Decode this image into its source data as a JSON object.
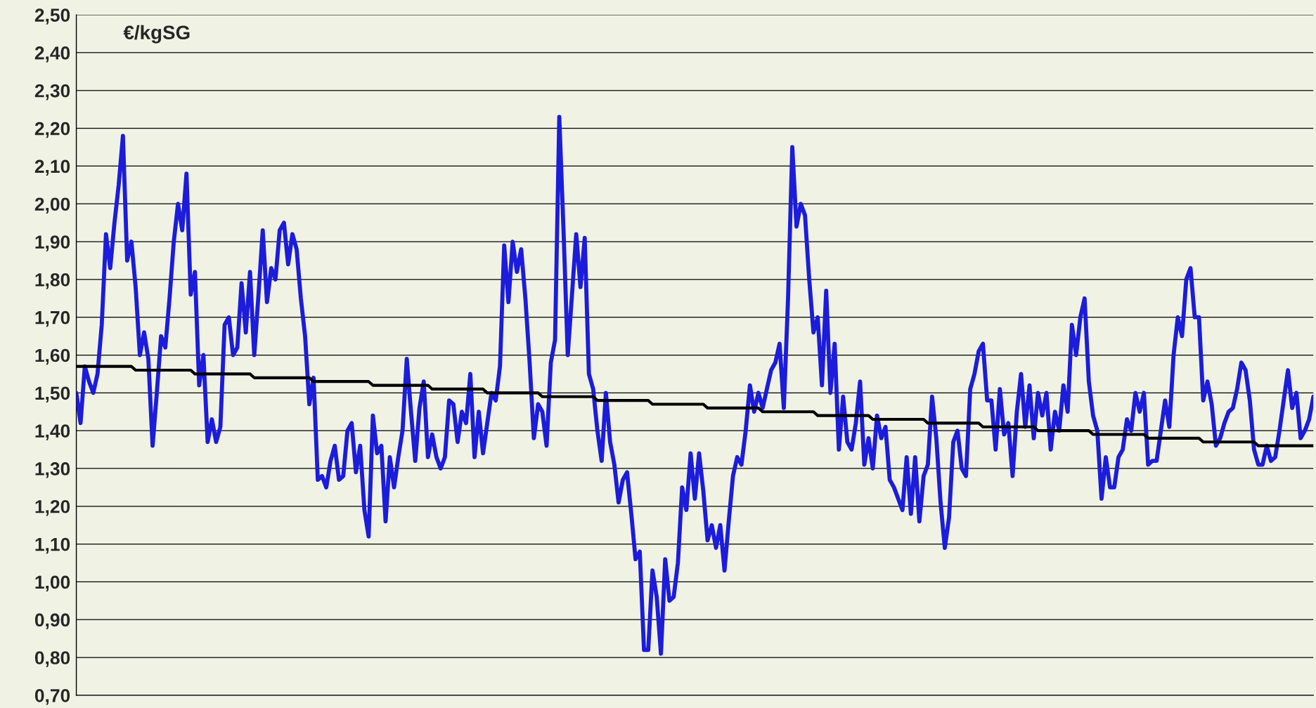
{
  "chart_data": {
    "type": "line",
    "annotations": [
      "€/kgSG"
    ],
    "categories": [
      null,
      null,
      null,
      null,
      null,
      null,
      null,
      null,
      null,
      null,
      null,
      null,
      null,
      null,
      null,
      null,
      null,
      null,
      null,
      null,
      null,
      null,
      null,
      null,
      null,
      null,
      null,
      null,
      null,
      null,
      null,
      null,
      null,
      null,
      null,
      null,
      null,
      null,
      null,
      null,
      null,
      null,
      null,
      null,
      null,
      null,
      null,
      null,
      null,
      null,
      null,
      null,
      null,
      null,
      null,
      null,
      null,
      null,
      null,
      null,
      null,
      null,
      null,
      null,
      null,
      null,
      null,
      null,
      null,
      null,
      null,
      null,
      null,
      null,
      null,
      null,
      null,
      null,
      null,
      null,
      null,
      null,
      null,
      null,
      null,
      null,
      null,
      null,
      null,
      null,
      null,
      null,
      null,
      null,
      null,
      null,
      null,
      null,
      null,
      null,
      null,
      null,
      null,
      null,
      null,
      null,
      null,
      null,
      null,
      null,
      null,
      null,
      null,
      null,
      null,
      null,
      null,
      null,
      null,
      null,
      null,
      null,
      null,
      null,
      null,
      null,
      null,
      null,
      null,
      null,
      null,
      null,
      null,
      null,
      null,
      null,
      null,
      null,
      null,
      null,
      null,
      null,
      null,
      null,
      null,
      null,
      null,
      null,
      null,
      null,
      null,
      null,
      null,
      null,
      null,
      null,
      null,
      null,
      null,
      null,
      null,
      null,
      null,
      null,
      null,
      null,
      null,
      null,
      null,
      null,
      null,
      null,
      null,
      null,
      null,
      null,
      null,
      null,
      null,
      null,
      null,
      null,
      null,
      null,
      null,
      null,
      null,
      null,
      null,
      null,
      null,
      null,
      null,
      null,
      null,
      null,
      null,
      null,
      null,
      null,
      null,
      null,
      null,
      null,
      null,
      null,
      null,
      null,
      null,
      null,
      null,
      null,
      null,
      null,
      null,
      null,
      null,
      null,
      null,
      null,
      null,
      null,
      null,
      null,
      null,
      null,
      null,
      null,
      null,
      null,
      null,
      null,
      null,
      null,
      null,
      null,
      null,
      null,
      null,
      null,
      null,
      null,
      null,
      null,
      null,
      null,
      null,
      null,
      null,
      null,
      null,
      null,
      null,
      null,
      null,
      null,
      null,
      null,
      null,
      null,
      null,
      null,
      null,
      null,
      null,
      null,
      null,
      null,
      null,
      null,
      null,
      null,
      null,
      null,
      null,
      null,
      null,
      null,
      null,
      null,
      null,
      null,
      null,
      null,
      null,
      null,
      null,
      null,
      null,
      null,
      null,
      null,
      null
    ],
    "ylim": [
      0.7,
      2.5
    ],
    "yticks": [
      {
        "value": 0.7,
        "label": "0,70"
      },
      {
        "value": 0.8,
        "label": "0,80"
      },
      {
        "value": 0.9,
        "label": "0,90"
      },
      {
        "value": 1.0,
        "label": "1,00"
      },
      {
        "value": 1.1,
        "label": "1,10"
      },
      {
        "value": 1.2,
        "label": "1,20"
      },
      {
        "value": 1.3,
        "label": "1,30"
      },
      {
        "value": 1.4,
        "label": "1,40"
      },
      {
        "value": 1.5,
        "label": "1,50"
      },
      {
        "value": 1.6,
        "label": "1,60"
      },
      {
        "value": 1.7,
        "label": "1,70"
      },
      {
        "value": 1.8,
        "label": "1,80"
      },
      {
        "value": 1.9,
        "label": "1,90"
      },
      {
        "value": 2.0,
        "label": "2,00"
      },
      {
        "value": 2.1,
        "label": "2,10"
      },
      {
        "value": 2.2,
        "label": "2,20"
      },
      {
        "value": 2.3,
        "label": "2,30"
      },
      {
        "value": 2.4,
        "label": "2,40"
      },
      {
        "value": 2.5,
        "label": "2,50"
      }
    ],
    "tick_labels": "y",
    "grid": "y",
    "marker": "none",
    "line_style": "solid",
    "series": [
      {
        "color": "#1c1cdc",
        "values": [
          1.5,
          1.42,
          1.57,
          1.53,
          1.5,
          1.55,
          1.68,
          1.92,
          1.83,
          1.95,
          2.05,
          2.18,
          1.85,
          1.9,
          1.78,
          1.6,
          1.66,
          1.59,
          1.36,
          1.5,
          1.65,
          1.62,
          1.75,
          1.9,
          2.0,
          1.93,
          2.08,
          1.76,
          1.82,
          1.52,
          1.6,
          1.37,
          1.43,
          1.37,
          1.41,
          1.68,
          1.7,
          1.6,
          1.62,
          1.79,
          1.66,
          1.82,
          1.6,
          1.76,
          1.93,
          1.74,
          1.83,
          1.8,
          1.93,
          1.95,
          1.84,
          1.92,
          1.88,
          1.75,
          1.65,
          1.47,
          1.54,
          1.27,
          1.28,
          1.25,
          1.32,
          1.36,
          1.27,
          1.28,
          1.4,
          1.42,
          1.29,
          1.36,
          1.19,
          1.12,
          1.44,
          1.34,
          1.36,
          1.16,
          1.33,
          1.25,
          1.33,
          1.4,
          1.59,
          1.45,
          1.32,
          1.46,
          1.53,
          1.33,
          1.39,
          1.33,
          1.3,
          1.33,
          1.48,
          1.47,
          1.37,
          1.45,
          1.42,
          1.55,
          1.33,
          1.45,
          1.34,
          1.42,
          1.5,
          1.48,
          1.57,
          1.89,
          1.74,
          1.9,
          1.82,
          1.88,
          1.75,
          1.58,
          1.38,
          1.47,
          1.45,
          1.36,
          1.58,
          1.64,
          2.23,
          1.93,
          1.6,
          1.76,
          1.92,
          1.78,
          1.91,
          1.55,
          1.51,
          1.4,
          1.32,
          1.5,
          1.37,
          1.31,
          1.21,
          1.27,
          1.29,
          1.18,
          1.06,
          1.08,
          0.82,
          0.82,
          1.03,
          0.96,
          0.81,
          1.06,
          0.95,
          0.96,
          1.05,
          1.25,
          1.19,
          1.34,
          1.22,
          1.34,
          1.24,
          1.11,
          1.15,
          1.09,
          1.15,
          1.03,
          1.16,
          1.28,
          1.33,
          1.31,
          1.4,
          1.52,
          1.45,
          1.5,
          1.46,
          1.51,
          1.56,
          1.58,
          1.63,
          1.46,
          1.75,
          2.15,
          1.94,
          2.0,
          1.97,
          1.8,
          1.66,
          1.7,
          1.52,
          1.77,
          1.5,
          1.63,
          1.35,
          1.49,
          1.37,
          1.35,
          1.42,
          1.53,
          1.31,
          1.38,
          1.3,
          1.44,
          1.38,
          1.41,
          1.27,
          1.25,
          1.22,
          1.19,
          1.33,
          1.18,
          1.33,
          1.16,
          1.28,
          1.31,
          1.49,
          1.38,
          1.21,
          1.09,
          1.17,
          1.37,
          1.4,
          1.3,
          1.28,
          1.51,
          1.55,
          1.61,
          1.63,
          1.48,
          1.48,
          1.35,
          1.51,
          1.39,
          1.42,
          1.28,
          1.45,
          1.55,
          1.41,
          1.52,
          1.38,
          1.5,
          1.44,
          1.5,
          1.35,
          1.45,
          1.4,
          1.52,
          1.45,
          1.68,
          1.6,
          1.7,
          1.75,
          1.53,
          1.44,
          1.4,
          1.22,
          1.33,
          1.25,
          1.25,
          1.33,
          1.35,
          1.43,
          1.4,
          1.5,
          1.45,
          1.5,
          1.31,
          1.32,
          1.32,
          1.4,
          1.48,
          1.41,
          1.6,
          1.7,
          1.65,
          1.8,
          1.83,
          1.7,
          1.7,
          1.48,
          1.53,
          1.47,
          1.36,
          1.38,
          1.42,
          1.45,
          1.46,
          1.51,
          1.58,
          1.56,
          1.48,
          1.35,
          1.31,
          1.31,
          1.36,
          1.32,
          1.33,
          1.4,
          1.48,
          1.56,
          1.46,
          1.5,
          1.38,
          1.4,
          1.43,
          1.49
        ]
      },
      {
        "color": "#000000",
        "values": [
          1.57,
          1.57,
          1.57,
          1.57,
          1.57,
          1.57,
          1.57,
          1.57,
          1.57,
          1.57,
          1.57,
          1.57,
          1.57,
          1.57,
          1.56,
          1.56,
          1.56,
          1.56,
          1.56,
          1.56,
          1.56,
          1.56,
          1.56,
          1.56,
          1.56,
          1.56,
          1.56,
          1.56,
          1.55,
          1.55,
          1.55,
          1.55,
          1.55,
          1.55,
          1.55,
          1.55,
          1.55,
          1.55,
          1.55,
          1.55,
          1.55,
          1.55,
          1.54,
          1.54,
          1.54,
          1.54,
          1.54,
          1.54,
          1.54,
          1.54,
          1.54,
          1.54,
          1.54,
          1.54,
          1.54,
          1.54,
          1.53,
          1.53,
          1.53,
          1.53,
          1.53,
          1.53,
          1.53,
          1.53,
          1.53,
          1.53,
          1.53,
          1.53,
          1.53,
          1.53,
          1.52,
          1.52,
          1.52,
          1.52,
          1.52,
          1.52,
          1.52,
          1.52,
          1.52,
          1.52,
          1.52,
          1.52,
          1.52,
          1.52,
          1.51,
          1.51,
          1.51,
          1.51,
          1.51,
          1.51,
          1.51,
          1.51,
          1.51,
          1.51,
          1.51,
          1.51,
          1.51,
          1.5,
          1.5,
          1.5,
          1.5,
          1.5,
          1.5,
          1.5,
          1.5,
          1.5,
          1.5,
          1.5,
          1.5,
          1.5,
          1.49,
          1.49,
          1.49,
          1.49,
          1.49,
          1.49,
          1.49,
          1.49,
          1.49,
          1.49,
          1.49,
          1.49,
          1.49,
          1.48,
          1.48,
          1.48,
          1.48,
          1.48,
          1.48,
          1.48,
          1.48,
          1.48,
          1.48,
          1.48,
          1.48,
          1.48,
          1.47,
          1.47,
          1.47,
          1.47,
          1.47,
          1.47,
          1.47,
          1.47,
          1.47,
          1.47,
          1.47,
          1.47,
          1.47,
          1.46,
          1.46,
          1.46,
          1.46,
          1.46,
          1.46,
          1.46,
          1.46,
          1.46,
          1.46,
          1.46,
          1.46,
          1.46,
          1.45,
          1.45,
          1.45,
          1.45,
          1.45,
          1.45,
          1.45,
          1.45,
          1.45,
          1.45,
          1.45,
          1.45,
          1.45,
          1.44,
          1.44,
          1.44,
          1.44,
          1.44,
          1.44,
          1.44,
          1.44,
          1.44,
          1.44,
          1.44,
          1.44,
          1.44,
          1.43,
          1.43,
          1.43,
          1.43,
          1.43,
          1.43,
          1.43,
          1.43,
          1.43,
          1.43,
          1.43,
          1.43,
          1.43,
          1.42,
          1.42,
          1.42,
          1.42,
          1.42,
          1.42,
          1.42,
          1.42,
          1.42,
          1.42,
          1.42,
          1.42,
          1.42,
          1.41,
          1.41,
          1.41,
          1.41,
          1.41,
          1.41,
          1.41,
          1.41,
          1.41,
          1.41,
          1.41,
          1.41,
          1.41,
          1.4,
          1.4,
          1.4,
          1.4,
          1.4,
          1.4,
          1.4,
          1.4,
          1.4,
          1.4,
          1.4,
          1.4,
          1.4,
          1.39,
          1.39,
          1.39,
          1.39,
          1.39,
          1.39,
          1.39,
          1.39,
          1.39,
          1.39,
          1.39,
          1.39,
          1.39,
          1.38,
          1.38,
          1.38,
          1.38,
          1.38,
          1.38,
          1.38,
          1.38,
          1.38,
          1.38,
          1.38,
          1.38,
          1.38,
          1.37,
          1.37,
          1.37,
          1.37,
          1.37,
          1.37,
          1.37,
          1.37,
          1.37,
          1.37,
          1.37,
          1.37,
          1.37,
          1.36,
          1.36,
          1.36,
          1.36,
          1.36,
          1.36,
          1.36,
          1.36,
          1.36,
          1.36,
          1.36,
          1.36,
          1.36,
          1.36
        ]
      }
    ]
  }
}
